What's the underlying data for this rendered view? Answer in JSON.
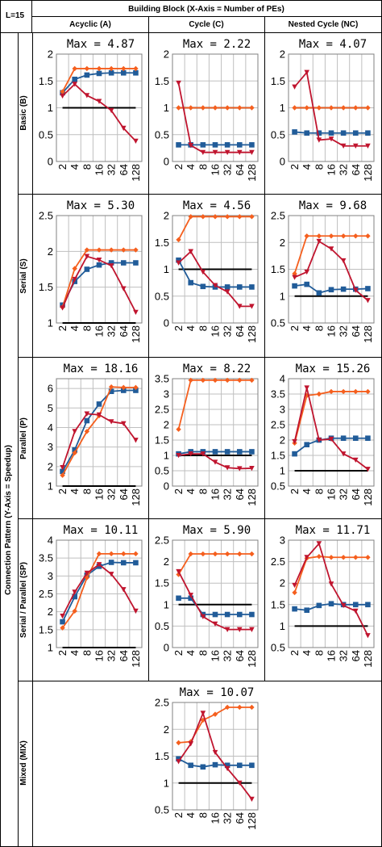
{
  "header": {
    "corner_label": "L=15",
    "top_title": "Building Block  (X-Axis = Number of PEs)",
    "columns": [
      "Acyclic (A)",
      "Cycle (C)",
      "Nested Cycle (NC)"
    ],
    "side_title": "Connection Pattern  (Y-Axis = Speedup)",
    "rows": [
      "Basic (B)",
      "Serial (S)",
      "Parallel (P)",
      "Serial / Parallel (SP)",
      "Mixed (MIX)"
    ]
  },
  "colors": {
    "orange": "#F55F1E",
    "blue": "#215C99",
    "red": "#C0152F",
    "black": "#000000",
    "grid": "#BFBFBF"
  },
  "chart_data": [
    {
      "id": "B-A",
      "type": "line",
      "title": "Max = 4.87",
      "x": [
        "2",
        "4",
        "8",
        "16",
        "32",
        "64",
        "128"
      ],
      "ylim": [
        0,
        2
      ],
      "yticks": [
        "0",
        "0.5",
        "1",
        "1.5",
        "2"
      ],
      "series": [
        {
          "color": "orange",
          "marker": "diamond",
          "values": [
            1.3,
            1.73,
            1.73,
            1.73,
            1.73,
            1.73,
            1.73
          ]
        },
        {
          "color": "blue",
          "marker": "square",
          "values": [
            1.28,
            1.53,
            1.61,
            1.64,
            1.65,
            1.65,
            1.65
          ]
        },
        {
          "color": "red",
          "marker": "triangle",
          "values": [
            1.22,
            1.44,
            1.23,
            1.12,
            0.95,
            0.62,
            0.38
          ]
        },
        {
          "color": "black",
          "marker": "none",
          "values": [
            1,
            1,
            1,
            1,
            1,
            1,
            1
          ]
        }
      ]
    },
    {
      "id": "B-C",
      "type": "line",
      "title": "Max = 2.22",
      "x": [
        "2",
        "4",
        "8",
        "16",
        "32",
        "64",
        "128"
      ],
      "ylim": [
        0,
        2
      ],
      "yticks": [
        "0",
        "0.5",
        "1",
        "1.5",
        "2"
      ],
      "series": [
        {
          "color": "orange",
          "marker": "diamond",
          "values": [
            1,
            1,
            1,
            1,
            1,
            1,
            1
          ]
        },
        {
          "color": "blue",
          "marker": "square",
          "values": [
            0.31,
            0.31,
            0.31,
            0.31,
            0.31,
            0.31,
            0.31
          ]
        },
        {
          "color": "red",
          "marker": "triangle",
          "values": [
            1.46,
            0.3,
            0.17,
            0.17,
            0.17,
            0.17,
            0.17
          ]
        },
        {
          "color": "black",
          "marker": "none",
          "values": [
            1,
            1,
            1,
            1,
            1,
            1,
            1
          ]
        }
      ]
    },
    {
      "id": "B-NC",
      "type": "line",
      "title": "Max = 4.07",
      "x": [
        "2",
        "4",
        "8",
        "16",
        "32",
        "64",
        "128"
      ],
      "ylim": [
        0,
        2
      ],
      "yticks": [
        "0",
        "0.5",
        "1",
        "1.5",
        "2"
      ],
      "series": [
        {
          "color": "orange",
          "marker": "diamond",
          "values": [
            1,
            1,
            1,
            1,
            1,
            1,
            1
          ]
        },
        {
          "color": "blue",
          "marker": "square",
          "values": [
            0.55,
            0.53,
            0.53,
            0.53,
            0.53,
            0.53,
            0.53
          ]
        },
        {
          "color": "red",
          "marker": "triangle",
          "values": [
            1.39,
            1.66,
            0.4,
            0.42,
            0.29,
            0.29,
            0.29
          ]
        },
        {
          "color": "black",
          "marker": "none",
          "values": [
            1,
            1,
            1,
            1,
            1,
            1,
            1
          ]
        }
      ]
    },
    {
      "id": "S-A",
      "type": "line",
      "title": "Max = 5.30",
      "x": [
        "2",
        "4",
        "8",
        "16",
        "32",
        "64",
        "128"
      ],
      "ylim": [
        1,
        2.5
      ],
      "yticks": [
        "1",
        "1.5",
        "2",
        "2.5"
      ],
      "series": [
        {
          "color": "orange",
          "marker": "diamond",
          "values": [
            1.22,
            1.76,
            2.02,
            2.02,
            2.02,
            2.02,
            2.02
          ]
        },
        {
          "color": "blue",
          "marker": "square",
          "values": [
            1.25,
            1.58,
            1.75,
            1.81,
            1.84,
            1.84,
            1.84
          ]
        },
        {
          "color": "red",
          "marker": "triangle",
          "values": [
            1.21,
            1.61,
            1.93,
            1.88,
            1.8,
            1.48,
            1.15
          ]
        },
        {
          "color": "black",
          "marker": "none",
          "values": [
            1,
            1,
            1,
            1,
            1,
            1,
            1
          ]
        }
      ]
    },
    {
      "id": "S-C",
      "type": "line",
      "title": "Max = 4.56",
      "x": [
        "2",
        "4",
        "8",
        "16",
        "32",
        "64",
        "128"
      ],
      "ylim": [
        0,
        2
      ],
      "yticks": [
        "0",
        "0.5",
        "1",
        "1.5",
        "2"
      ],
      "series": [
        {
          "color": "orange",
          "marker": "diamond",
          "values": [
            1.55,
            1.98,
            1.98,
            1.98,
            1.98,
            1.98,
            1.98
          ]
        },
        {
          "color": "blue",
          "marker": "square",
          "values": [
            1.17,
            0.75,
            0.68,
            0.67,
            0.67,
            0.67,
            0.67
          ]
        },
        {
          "color": "red",
          "marker": "triangle",
          "values": [
            1.12,
            1.33,
            0.95,
            0.7,
            0.58,
            0.31,
            0.31
          ]
        },
        {
          "color": "black",
          "marker": "none",
          "values": [
            1,
            1,
            1,
            1,
            1,
            1,
            1
          ]
        }
      ]
    },
    {
      "id": "S-NC",
      "type": "line",
      "title": "Max = 9.68",
      "x": [
        "2",
        "4",
        "8",
        "16",
        "32",
        "64",
        "128"
      ],
      "ylim": [
        0.5,
        2.5
      ],
      "yticks": [
        "0.5",
        "1",
        "1.5",
        "2",
        "2.5"
      ],
      "series": [
        {
          "color": "orange",
          "marker": "diamond",
          "values": [
            1.42,
            2.12,
            2.12,
            2.12,
            2.12,
            2.12,
            2.12
          ]
        },
        {
          "color": "blue",
          "marker": "square",
          "values": [
            1.19,
            1.22,
            1.06,
            1.12,
            1.13,
            1.13,
            1.14
          ]
        },
        {
          "color": "red",
          "marker": "triangle",
          "values": [
            1.35,
            1.45,
            2.02,
            1.88,
            1.66,
            1.11,
            0.92
          ]
        },
        {
          "color": "black",
          "marker": "none",
          "values": [
            1,
            1,
            1,
            1,
            1,
            1,
            1
          ]
        }
      ]
    },
    {
      "id": "P-A",
      "type": "line",
      "title": "Max = 18.16",
      "x": [
        "2",
        "4",
        "8",
        "16",
        "32",
        "64",
        "128"
      ],
      "ylim": [
        1,
        6.5
      ],
      "yticks": [
        "1",
        "2",
        "3",
        "4",
        "5",
        "6"
      ],
      "series": [
        {
          "color": "orange",
          "marker": "diamond",
          "values": [
            1.55,
            2.7,
            3.8,
            4.6,
            6.08,
            6.05,
            6.05
          ]
        },
        {
          "color": "blue",
          "marker": "square",
          "values": [
            1.75,
            2.85,
            4.35,
            5.2,
            5.85,
            5.9,
            5.9
          ]
        },
        {
          "color": "red",
          "marker": "triangle",
          "values": [
            1.95,
            3.8,
            4.7,
            4.65,
            4.3,
            4.2,
            3.35
          ]
        },
        {
          "color": "black",
          "marker": "none",
          "values": [
            1,
            1,
            1,
            1,
            1,
            1,
            1
          ]
        }
      ]
    },
    {
      "id": "P-C",
      "type": "line",
      "title": "Max = 8.22",
      "x": [
        "2",
        "4",
        "8",
        "16",
        "32",
        "64",
        "128"
      ],
      "ylim": [
        0,
        3.5
      ],
      "yticks": [
        "0",
        "0.5",
        "1",
        "1.5",
        "2",
        "2.5",
        "3",
        "3.5"
      ],
      "series": [
        {
          "color": "orange",
          "marker": "diamond",
          "values": [
            1.85,
            3.45,
            3.45,
            3.45,
            3.45,
            3.45,
            3.45
          ]
        },
        {
          "color": "blue",
          "marker": "square",
          "values": [
            1.05,
            1.12,
            1.12,
            1.12,
            1.12,
            1.12,
            1.12
          ]
        },
        {
          "color": "red",
          "marker": "triangle",
          "values": [
            1.0,
            1.05,
            1.05,
            0.78,
            0.6,
            0.57,
            0.58
          ]
        },
        {
          "color": "black",
          "marker": "none",
          "values": [
            1,
            1,
            1,
            1,
            1,
            1,
            1
          ]
        }
      ]
    },
    {
      "id": "P-NC",
      "type": "line",
      "title": "Max =  15.26",
      "x": [
        "2",
        "4",
        "8",
        "16",
        "32",
        "64",
        "128"
      ],
      "ylim": [
        0.5,
        4
      ],
      "yticks": [
        "0.5",
        "1",
        "1.5",
        "2",
        "2.5",
        "3",
        "3.5",
        "4"
      ],
      "series": [
        {
          "color": "orange",
          "marker": "diamond",
          "values": [
            1.9,
            3.45,
            3.5,
            3.58,
            3.58,
            3.58,
            3.58
          ]
        },
        {
          "color": "blue",
          "marker": "square",
          "values": [
            1.55,
            1.85,
            2.0,
            2.06,
            2.06,
            2.06,
            2.06
          ]
        },
        {
          "color": "red",
          "marker": "triangle",
          "values": [
            1.95,
            3.7,
            2.0,
            2.03,
            1.55,
            1.35,
            1.05
          ]
        },
        {
          "color": "black",
          "marker": "none",
          "values": [
            1,
            1,
            1,
            1,
            1,
            1,
            1
          ]
        }
      ]
    },
    {
      "id": "SP-A",
      "type": "line",
      "title": "Max = 10.11",
      "x": [
        "2",
        "4",
        "8",
        "16",
        "32",
        "64",
        "128"
      ],
      "ylim": [
        1,
        4
      ],
      "yticks": [
        "1",
        "1.5",
        "2",
        "2.5",
        "3",
        "3.5",
        "4"
      ],
      "series": [
        {
          "color": "orange",
          "marker": "diamond",
          "values": [
            1.55,
            2.02,
            2.95,
            3.62,
            3.62,
            3.62,
            3.62
          ]
        },
        {
          "color": "blue",
          "marker": "square",
          "values": [
            1.72,
            2.42,
            3.02,
            3.27,
            3.38,
            3.37,
            3.37
          ]
        },
        {
          "color": "red",
          "marker": "triangle",
          "values": [
            1.88,
            2.55,
            3.08,
            3.32,
            3.05,
            2.62,
            2.02
          ]
        },
        {
          "color": "black",
          "marker": "none",
          "values": [
            1,
            1,
            1,
            1,
            1,
            1,
            1
          ]
        }
      ]
    },
    {
      "id": "SP-C",
      "type": "line",
      "title": "Max = 5.90",
      "x": [
        "2",
        "4",
        "8",
        "16",
        "32",
        "64",
        "128"
      ],
      "ylim": [
        0,
        2.5
      ],
      "yticks": [
        "0",
        "0.5",
        "1",
        "1.5",
        "2",
        "2.5"
      ],
      "series": [
        {
          "color": "orange",
          "marker": "diamond",
          "values": [
            1.7,
            2.18,
            2.18,
            2.18,
            2.18,
            2.18,
            2.18
          ]
        },
        {
          "color": "blue",
          "marker": "square",
          "values": [
            1.15,
            1.15,
            0.77,
            0.77,
            0.77,
            0.77,
            0.77
          ]
        },
        {
          "color": "red",
          "marker": "triangle",
          "values": [
            1.77,
            1.22,
            0.72,
            0.55,
            0.42,
            0.42,
            0.42
          ]
        },
        {
          "color": "black",
          "marker": "none",
          "values": [
            1,
            1,
            1,
            1,
            1,
            1,
            1
          ]
        }
      ]
    },
    {
      "id": "SP-NC",
      "type": "line",
      "title": "Max = 11.71",
      "x": [
        "2",
        "4",
        "8",
        "16",
        "32",
        "64",
        "128"
      ],
      "ylim": [
        0.5,
        3
      ],
      "yticks": [
        "0.5",
        "1",
        "1.5",
        "2",
        "2.5",
        "3"
      ],
      "series": [
        {
          "color": "orange",
          "marker": "diamond",
          "values": [
            1.78,
            2.58,
            2.62,
            2.6,
            2.6,
            2.6,
            2.6
          ]
        },
        {
          "color": "blue",
          "marker": "square",
          "values": [
            1.4,
            1.37,
            1.48,
            1.52,
            1.5,
            1.5,
            1.5
          ]
        },
        {
          "color": "red",
          "marker": "triangle",
          "values": [
            1.95,
            2.6,
            2.92,
            1.98,
            1.48,
            1.35,
            0.78
          ]
        },
        {
          "color": "black",
          "marker": "none",
          "values": [
            1,
            1,
            1,
            1,
            1,
            1,
            1
          ]
        }
      ]
    },
    {
      "id": "MIX-C",
      "type": "line",
      "title": "Max = 10.07",
      "x": [
        "2",
        "4",
        "8",
        "16",
        "32",
        "64",
        "128"
      ],
      "ylim": [
        0.5,
        2.5
      ],
      "yticks": [
        "0.5",
        "1",
        "1.5",
        "2",
        "2.5"
      ],
      "series": [
        {
          "color": "orange",
          "marker": "diamond",
          "values": [
            1.75,
            1.77,
            2.17,
            2.28,
            2.41,
            2.41,
            2.41
          ]
        },
        {
          "color": "blue",
          "marker": "square",
          "values": [
            1.45,
            1.33,
            1.3,
            1.34,
            1.33,
            1.33,
            1.33
          ]
        },
        {
          "color": "red",
          "marker": "triangle",
          "values": [
            1.4,
            1.73,
            2.3,
            1.57,
            1.27,
            1.0,
            0.7
          ]
        },
        {
          "color": "black",
          "marker": "none",
          "values": [
            1,
            1,
            1,
            1,
            1,
            1,
            1
          ]
        }
      ]
    }
  ]
}
